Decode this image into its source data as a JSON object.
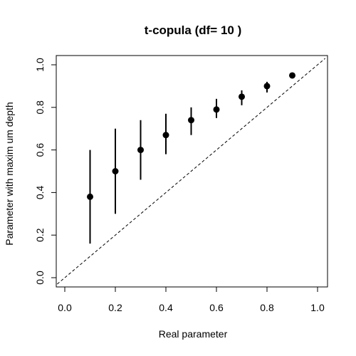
{
  "chart_data": {
    "type": "scatter",
    "title": "t-copula (df= 10 )",
    "xlabel": "Real parameter",
    "ylabel": "Parameter with maxim um depth",
    "xlim": [
      0.0,
      1.0
    ],
    "ylim": [
      0.0,
      1.0
    ],
    "xticks": [
      "0.0",
      "0.2",
      "0.4",
      "0.6",
      "0.8",
      "1.0"
    ],
    "yticks": [
      "0.0",
      "0.2",
      "0.4",
      "0.6",
      "0.8",
      "1.0"
    ],
    "grid": false,
    "legend": "none",
    "reference_line": {
      "style": "dashed",
      "slope": 1,
      "intercept": 0
    },
    "points": [
      {
        "x": 0.1,
        "y": 0.38,
        "lower": 0.16,
        "upper": 0.6
      },
      {
        "x": 0.2,
        "y": 0.5,
        "lower": 0.3,
        "upper": 0.7
      },
      {
        "x": 0.3,
        "y": 0.6,
        "lower": 0.46,
        "upper": 0.74
      },
      {
        "x": 0.4,
        "y": 0.67,
        "lower": 0.58,
        "upper": 0.77
      },
      {
        "x": 0.5,
        "y": 0.74,
        "lower": 0.67,
        "upper": 0.8
      },
      {
        "x": 0.6,
        "y": 0.79,
        "lower": 0.75,
        "upper": 0.84
      },
      {
        "x": 0.7,
        "y": 0.85,
        "lower": 0.81,
        "upper": 0.88
      },
      {
        "x": 0.8,
        "y": 0.9,
        "lower": 0.87,
        "upper": 0.92
      },
      {
        "x": 0.9,
        "y": 0.95,
        "lower": 0.94,
        "upper": 0.96
      }
    ],
    "colors": {
      "points": "#000000",
      "axis": "#000000"
    }
  }
}
